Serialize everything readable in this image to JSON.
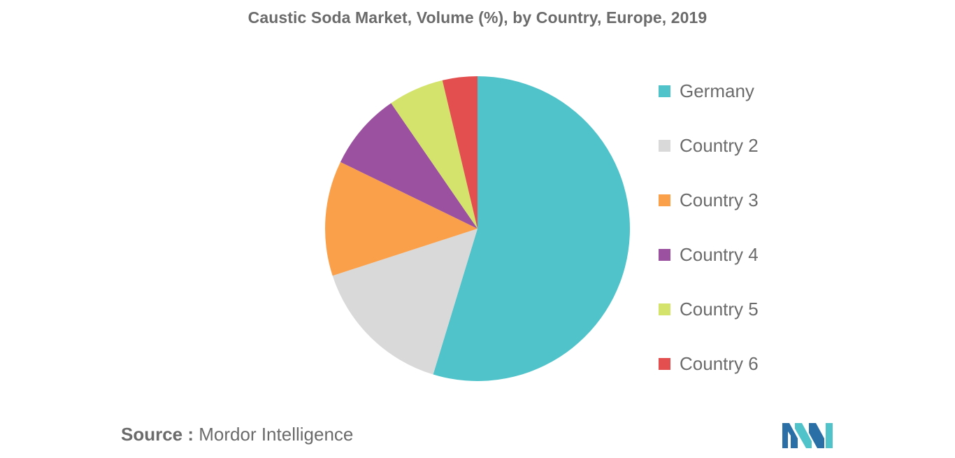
{
  "chart_data": {
    "type": "pie",
    "title": "Caustic Soda Market, Volume (%), by Country, Europe, 2019",
    "slices": [
      {
        "label": "Germany",
        "value": 54.7,
        "color": "#4fc3c9"
      },
      {
        "label": "Country 2",
        "value": 15.3,
        "color": "#d9d9d9"
      },
      {
        "label": "Country 3",
        "value": 12.2,
        "color": "#fba04a"
      },
      {
        "label": "Country 4",
        "value": 8.2,
        "color": "#9b519f"
      },
      {
        "label": "Country 5",
        "value": 5.9,
        "color": "#d3e36b"
      },
      {
        "label": "Country 6",
        "value": 3.7,
        "color": "#e34e4e"
      }
    ],
    "start_angle_deg": 0,
    "direction": "clockwise",
    "legend_position": "right"
  },
  "source": {
    "prefix": "Source :",
    "text": " Mordor Intelligence"
  },
  "logo": {
    "name": "mordor-intelligence-logo",
    "colors": [
      "#2a6fa6",
      "#4fc3c9"
    ]
  }
}
